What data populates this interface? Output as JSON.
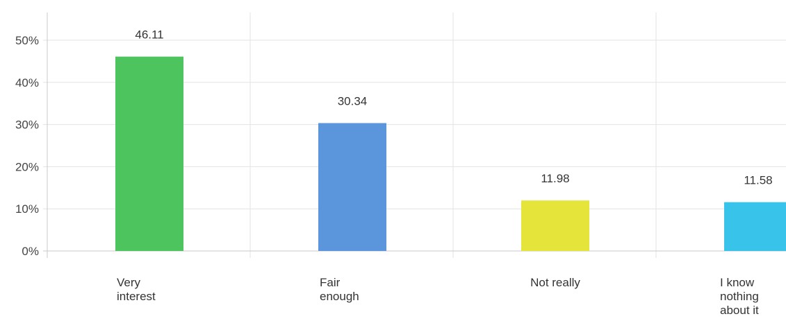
{
  "chart_data": {
    "type": "bar",
    "title": "",
    "xlabel": "",
    "ylabel": "",
    "ylim": [
      0,
      50
    ],
    "yticks": [
      0,
      10,
      20,
      30,
      40,
      50
    ],
    "ytick_labels": [
      "0%",
      "10%",
      "20%",
      "30%",
      "40%",
      "50%"
    ],
    "grid": true,
    "categories": [
      [
        "Very",
        "interest"
      ],
      [
        "Fair",
        "enough"
      ],
      [
        "Not really"
      ],
      [
        "I know",
        "nothing",
        "about it"
      ]
    ],
    "values": [
      46.11,
      30.34,
      11.98,
      11.58
    ],
    "value_labels": [
      "46.11",
      "30.34",
      "11.98",
      "11.58"
    ],
    "colors": [
      "#4ec45e",
      "#5b95dc",
      "#e4e43a",
      "#38c3eb"
    ]
  }
}
